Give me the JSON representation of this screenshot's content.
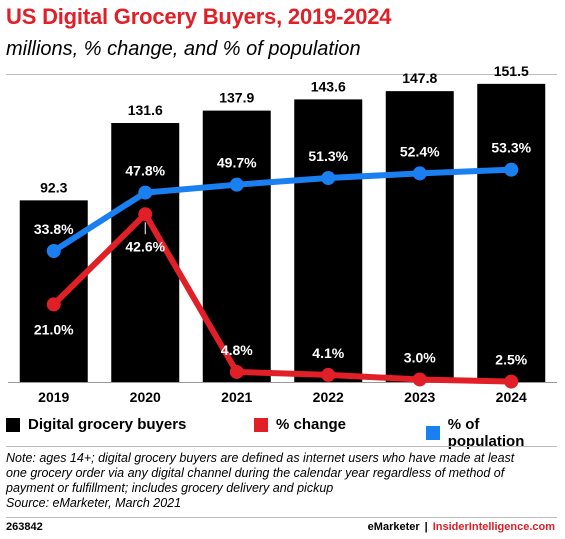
{
  "title": "US Digital Grocery Buyers, 2019-2024",
  "subtitle": "millions, % change, and % of population",
  "chart_data": {
    "type": "bar",
    "categories": [
      "2019",
      "2020",
      "2021",
      "2022",
      "2023",
      "2024"
    ],
    "series": [
      {
        "name": "Digital grocery buyers",
        "kind": "bar",
        "color": "#000000",
        "values": [
          92.3,
          131.6,
          137.9,
          143.6,
          147.8,
          151.5
        ],
        "labels": [
          "92.3",
          "131.6",
          "137.9",
          "143.6",
          "147.8",
          "151.5"
        ]
      },
      {
        "name": "% change",
        "kind": "line",
        "color": "#e01f26",
        "values": [
          21.0,
          42.6,
          4.8,
          4.1,
          3.0,
          2.5
        ],
        "labels": [
          "21.0%",
          "42.6%",
          "4.8%",
          "4.1%",
          "3.0%",
          "2.5%"
        ]
      },
      {
        "name": "% of population",
        "kind": "line",
        "color": "#1a7ff0",
        "values": [
          33.8,
          47.8,
          49.7,
          51.3,
          52.4,
          53.3
        ],
        "labels": [
          "33.8%",
          "47.8%",
          "49.7%",
          "51.3%",
          "52.4%",
          "53.3%"
        ]
      }
    ],
    "legend_position": "bottom",
    "grid": false
  },
  "note": [
    "Note: ages 14+; digital grocery buyers are defined as internet users who have made at least",
    "one grocery order via any digital channel during the calendar year regardless of method of",
    "payment or fulfillment; includes grocery delivery and pickup",
    "Source: eMarketer, March 2021"
  ],
  "footer": {
    "id": "263842",
    "brand_left": "eMarketer",
    "separator": "|",
    "brand_right": "InsiderIntelligence.com"
  }
}
